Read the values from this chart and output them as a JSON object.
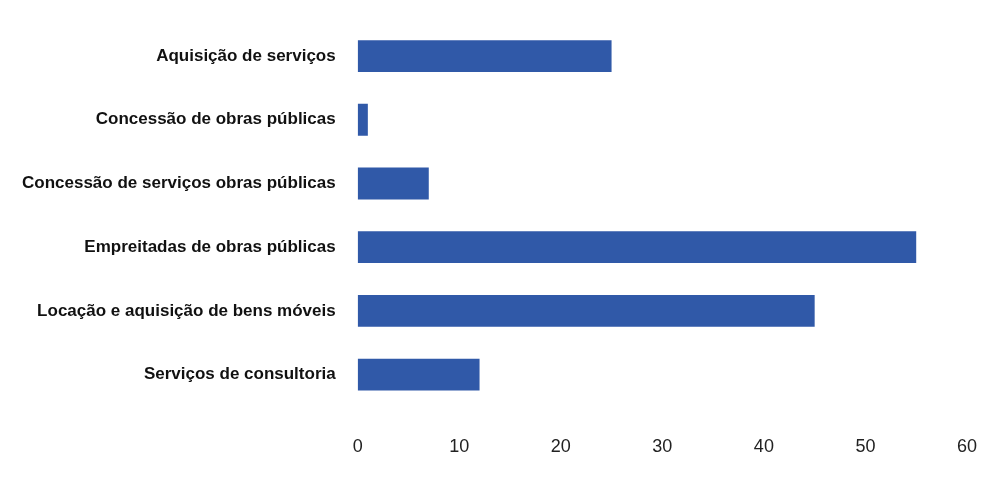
{
  "chart_data": {
    "type": "bar",
    "orientation": "horizontal",
    "categories": [
      "Aquisição de serviços",
      "Concessão de obras públicas",
      "Concessão de serviços obras públicas",
      "Empreitadas de obras públicas",
      "Locação e aquisição de bens móveis",
      "Serviços de consultoria"
    ],
    "values": [
      25,
      1,
      7,
      55,
      45,
      12
    ],
    "color": "#3059a8",
    "xlim": [
      0,
      60
    ],
    "xticks": [
      0,
      10,
      20,
      30,
      40,
      50,
      60
    ],
    "grid": false
  }
}
